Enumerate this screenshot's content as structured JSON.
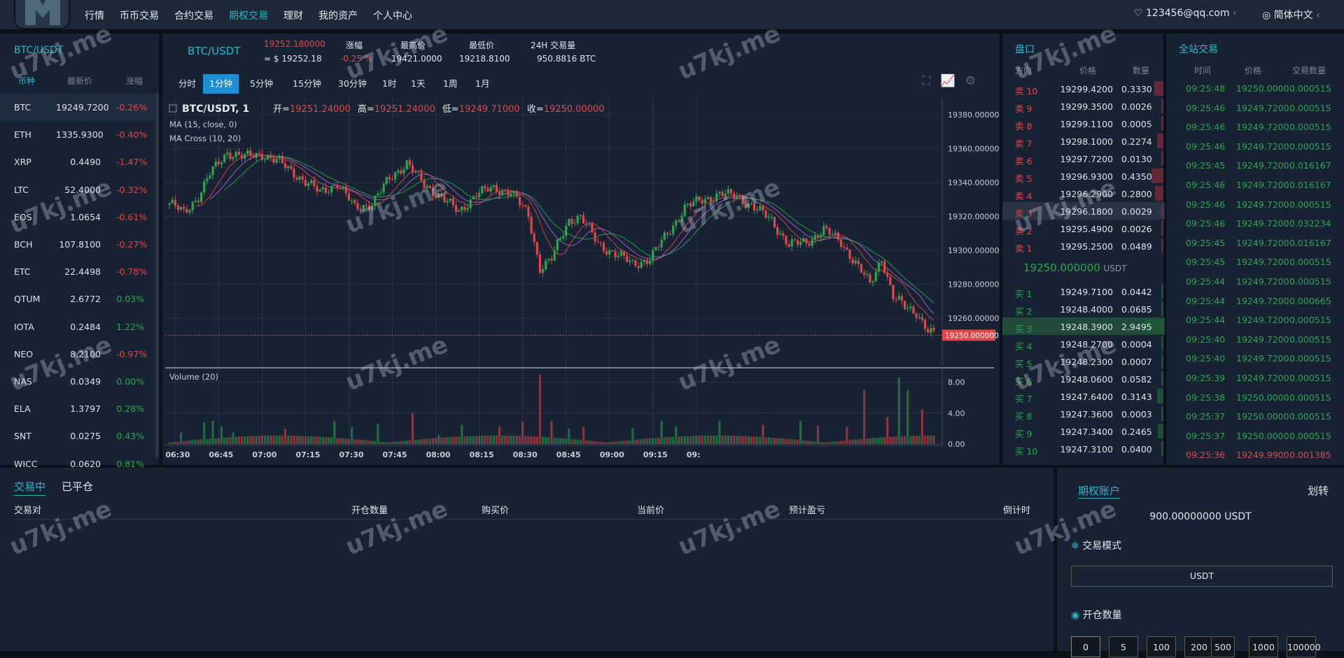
{
  "nav": {
    "items": [
      "行情",
      "币币交易",
      "合约交易",
      "期权交易",
      "理财",
      "我的资产",
      "个人中心"
    ],
    "active": 3,
    "user": "123456@qq.com",
    "lang": "简体中文"
  },
  "watermark": "u7kj.me",
  "market": {
    "title": "BTC/USDT",
    "headers": [
      "币种",
      "最新价",
      "涨幅"
    ],
    "rows": [
      {
        "coin": "BTC",
        "price": "19249.7200",
        "change": "-0.26%",
        "dir": "dn"
      },
      {
        "coin": "ETH",
        "price": "1335.9300",
        "change": "-0.40%",
        "dir": "dn"
      },
      {
        "coin": "XRP",
        "price": "0.4490",
        "change": "-1.47%",
        "dir": "dn"
      },
      {
        "coin": "LTC",
        "price": "52.4000",
        "change": "-0.32%",
        "dir": "dn"
      },
      {
        "coin": "EOS",
        "price": "1.0654",
        "change": "-0.61%",
        "dir": "dn"
      },
      {
        "coin": "BCH",
        "price": "107.8100",
        "change": "-0.27%",
        "dir": "dn"
      },
      {
        "coin": "ETC",
        "price": "22.4498",
        "change": "-0.78%",
        "dir": "dn"
      },
      {
        "coin": "QTUM",
        "price": "2.6772",
        "change": "0.03%",
        "dir": "up"
      },
      {
        "coin": "IOTA",
        "price": "0.2484",
        "change": "1.22%",
        "dir": "up"
      },
      {
        "coin": "NEO",
        "price": "8.2100",
        "change": "-0.97%",
        "dir": "dn"
      },
      {
        "coin": "NAS",
        "price": "0.0349",
        "change": "0.00%",
        "dir": "up"
      },
      {
        "coin": "ELA",
        "price": "1.3797",
        "change": "0.28%",
        "dir": "up"
      },
      {
        "coin": "SNT",
        "price": "0.0275",
        "change": "0.43%",
        "dir": "up"
      },
      {
        "coin": "WICC",
        "price": "0.0620",
        "change": "0.81%",
        "dir": "up"
      }
    ]
  },
  "ticker": {
    "pair": "BTC/USDT",
    "price": "19252.180000",
    "price_usd": "≈ $ 19252.18",
    "change_label": "涨幅",
    "change": "-0.25 %",
    "high_label": "最高价",
    "high": "19421.0000",
    "low_label": "最低价",
    "low": "19218.8100",
    "vol_label": "24H 交易量",
    "vol": "950.8816 BTC"
  },
  "timeframes": [
    "分时",
    "1分钟",
    "5分钟",
    "15分钟",
    "30分钟",
    "1时",
    "1天",
    "1周",
    "1月"
  ],
  "timeframe_active": 1,
  "chart_data": {
    "type": "candlestick",
    "title": "BTC/USDT, 1",
    "legend": {
      "open_label": "开=",
      "open": "19251.24000",
      "high_label": "高=",
      "high": "19251.24000",
      "low_label": "低=",
      "low": "19249.71000",
      "close_label": "收=",
      "close": "19250.00000"
    },
    "indicators": [
      "MA (15, close, 0)",
      "MA Cross (10, 20)"
    ],
    "volume_label": "Volume (20)",
    "price_axis": [
      "19380.00000",
      "19360.00000",
      "19340.00000",
      "19320.00000",
      "19300.00000",
      "19280.00000",
      "19260.00000"
    ],
    "price_ticks": [
      19380,
      19360,
      19340,
      19320,
      19300,
      19280,
      19260
    ],
    "ylim": [
      19232,
      19390
    ],
    "last_price": "19250.000000",
    "last_price_value": 19250,
    "volume_axis": [
      "8.00",
      "4.00",
      "0.00"
    ],
    "volume_ticks": [
      8,
      4,
      0
    ],
    "volume_ylim": [
      0,
      9.5
    ],
    "time_axis": [
      "06:30",
      "06:45",
      "07:00",
      "07:15",
      "07:30",
      "07:45",
      "08:00",
      "08:15",
      "08:30",
      "08:45",
      "09:00",
      "09:15",
      "09:"
    ],
    "minute_start": "06:28",
    "anchors": [
      [
        0,
        19328
      ],
      [
        5,
        19322
      ],
      [
        10,
        19332
      ],
      [
        14,
        19345
      ],
      [
        20,
        19358
      ],
      [
        26,
        19355
      ],
      [
        32,
        19357
      ],
      [
        38,
        19352
      ],
      [
        46,
        19342
      ],
      [
        52,
        19334
      ],
      [
        58,
        19340
      ],
      [
        64,
        19325
      ],
      [
        70,
        19328
      ],
      [
        76,
        19342
      ],
      [
        82,
        19352
      ],
      [
        88,
        19338
      ],
      [
        94,
        19332
      ],
      [
        100,
        19322
      ],
      [
        106,
        19334
      ],
      [
        112,
        19336
      ],
      [
        118,
        19335
      ],
      [
        124,
        19320
      ],
      [
        128,
        19290
      ],
      [
        132,
        19295
      ],
      [
        138,
        19318
      ],
      [
        142,
        19320
      ],
      [
        148,
        19304
      ],
      [
        154,
        19298
      ],
      [
        160,
        19292
      ],
      [
        166,
        19295
      ],
      [
        172,
        19310
      ],
      [
        178,
        19325
      ],
      [
        184,
        19330
      ],
      [
        190,
        19333
      ],
      [
        196,
        19332
      ],
      [
        202,
        19325
      ],
      [
        208,
        19318
      ],
      [
        214,
        19303
      ],
      [
        220,
        19305
      ],
      [
        226,
        19312
      ],
      [
        232,
        19305
      ],
      [
        238,
        19290
      ],
      [
        242,
        19280
      ],
      [
        246,
        19296
      ],
      [
        250,
        19272
      ],
      [
        254,
        19267
      ],
      [
        258,
        19264
      ],
      [
        262,
        19252
      ],
      [
        264,
        19250
      ]
    ],
    "volumes": {
      "4": 1.5,
      "12": 2.8,
      "15": 3,
      "18": 2.3,
      "22": 1.5,
      "40": 2,
      "57": 3,
      "63": 2.2,
      "72": 2.6,
      "84": 4,
      "93": 1.2,
      "101": 2.5,
      "114": 2.3,
      "122": 2.9,
      "128": 9,
      "132": 3,
      "138": 2,
      "143": 2.2,
      "160": 2.1,
      "170": 3,
      "175": 2.3,
      "190": 3,
      "205": 2.5,
      "218": 3,
      "224": 2.4,
      "234": 2.2,
      "240": 7,
      "248": 3.5,
      "252": 8.6,
      "255": 7,
      "260": 4.5
    }
  },
  "orderbook": {
    "title": "盘口",
    "headers": [
      "方向",
      "价格",
      "数量"
    ],
    "asks": [
      {
        "side": "卖 10",
        "price": "19299.4200",
        "qty": "0.3330",
        "depth": 0.5
      },
      {
        "side": "卖 9",
        "price": "19299.3500",
        "qty": "0.0026",
        "depth": 0.05
      },
      {
        "side": "卖 8",
        "price": "19299.1100",
        "qty": "0.0005",
        "depth": 0.03
      },
      {
        "side": "卖 7",
        "price": "19298.1000",
        "qty": "0.2274",
        "depth": 0.35
      },
      {
        "side": "卖 6",
        "price": "19297.7200",
        "qty": "0.0130",
        "depth": 0.08
      },
      {
        "side": "卖 5",
        "price": "19296.9300",
        "qty": "0.4350",
        "depth": 0.65
      },
      {
        "side": "卖 4",
        "price": "19296.2900",
        "qty": "0.2800",
        "depth": 0.45
      },
      {
        "side": "卖 3",
        "price": "19296.1800",
        "qty": "0.0029",
        "depth": 0.05
      },
      {
        "side": "卖 2",
        "price": "19295.4900",
        "qty": "0.0026",
        "depth": 0.05
      },
      {
        "side": "卖 1",
        "price": "19295.2500",
        "qty": "0.0489",
        "depth": 0.1
      }
    ],
    "mid": "19250.000000",
    "mid_unit": "USDT",
    "bids": [
      {
        "side": "买 1",
        "price": "19249.7100",
        "qty": "0.0442",
        "depth": 0.08
      },
      {
        "side": "买 2",
        "price": "19248.4000",
        "qty": "0.0685",
        "depth": 0.1
      },
      {
        "side": "买 3",
        "price": "19248.3900",
        "qty": "2.9495",
        "depth": 1
      },
      {
        "side": "买 4",
        "price": "19248.2700",
        "qty": "0.0004",
        "depth": 0.03
      },
      {
        "side": "买 5",
        "price": "19248.2300",
        "qty": "0.0007",
        "depth": 0.03
      },
      {
        "side": "买 6",
        "price": "19248.0600",
        "qty": "0.0582",
        "depth": 0.1
      },
      {
        "side": "买 7",
        "price": "19247.6400",
        "qty": "0.3143",
        "depth": 0.35
      },
      {
        "side": "买 8",
        "price": "19247.3600",
        "qty": "0.0003",
        "depth": 0.03
      },
      {
        "side": "买 9",
        "price": "19247.3400",
        "qty": "0.2465",
        "depth": 0.3
      },
      {
        "side": "买 10",
        "price": "19247.3100",
        "qty": "0.0400",
        "depth": 0.08
      }
    ]
  },
  "trades": {
    "title": "全站交易",
    "headers": [
      "时间",
      "价格",
      "交易数量"
    ],
    "rows": [
      [
        "09:25:48",
        "19250.0000",
        "0.000515",
        "up"
      ],
      [
        "09:25:46",
        "19249.7200",
        "0.000515",
        "up"
      ],
      [
        "09:25:46",
        "19249.7200",
        "0.000515",
        "up"
      ],
      [
        "09:25:46",
        "19249.7200",
        "0.000515",
        "up"
      ],
      [
        "09:25:45",
        "19249.7200",
        "0.016167",
        "up"
      ],
      [
        "09:25:46",
        "19249.7200",
        "0.016167",
        "up"
      ],
      [
        "09:25:46",
        "19249.7200",
        "0.000515",
        "up"
      ],
      [
        "09:25:46",
        "19249.7200",
        "0.032234",
        "up"
      ],
      [
        "09:25:45",
        "19249.7200",
        "0.016167",
        "up"
      ],
      [
        "09:25:45",
        "19249.7200",
        "0.000515",
        "up"
      ],
      [
        "09:25:44",
        "19249.7200",
        "0.000515",
        "up"
      ],
      [
        "09:25:44",
        "19249.7200",
        "0.000665",
        "up"
      ],
      [
        "09:25:44",
        "19249.7200",
        "0.000515",
        "up"
      ],
      [
        "09:25:40",
        "19249.7200",
        "0.000515",
        "up"
      ],
      [
        "09:25:40",
        "19249.7200",
        "0.000515",
        "up"
      ],
      [
        "09:25:39",
        "19249.7200",
        "0.000515",
        "up"
      ],
      [
        "09:25:38",
        "19250.0000",
        "0.000515",
        "up"
      ],
      [
        "09:25:37",
        "19250.0000",
        "0.000515",
        "up"
      ],
      [
        "09:25:37",
        "19250.0000",
        "0.000515",
        "up"
      ],
      [
        "09:25:36",
        "19249.9900",
        "0.001385",
        "dn"
      ]
    ]
  },
  "positions": {
    "tabs": [
      "交易中",
      "已平仓"
    ],
    "headers": [
      "交易对",
      "开仓数量",
      "购买价",
      "当前价",
      "预计盈亏",
      "倒计时"
    ]
  },
  "account": {
    "title": "期权账户",
    "transfer": "划转",
    "balance": "900.00000000 USDT",
    "mode_label": "交易模式",
    "mode_value": "USDT",
    "qty_label": "开仓数量",
    "qty_options": [
      "0",
      "5",
      "100",
      "200",
      "500",
      "1000",
      "100000"
    ]
  },
  "colors": {
    "accent": "#2bb3c8",
    "up": "#2ea44f",
    "down": "#e0474b",
    "panel": "#172233",
    "bg": "#0c1119"
  }
}
